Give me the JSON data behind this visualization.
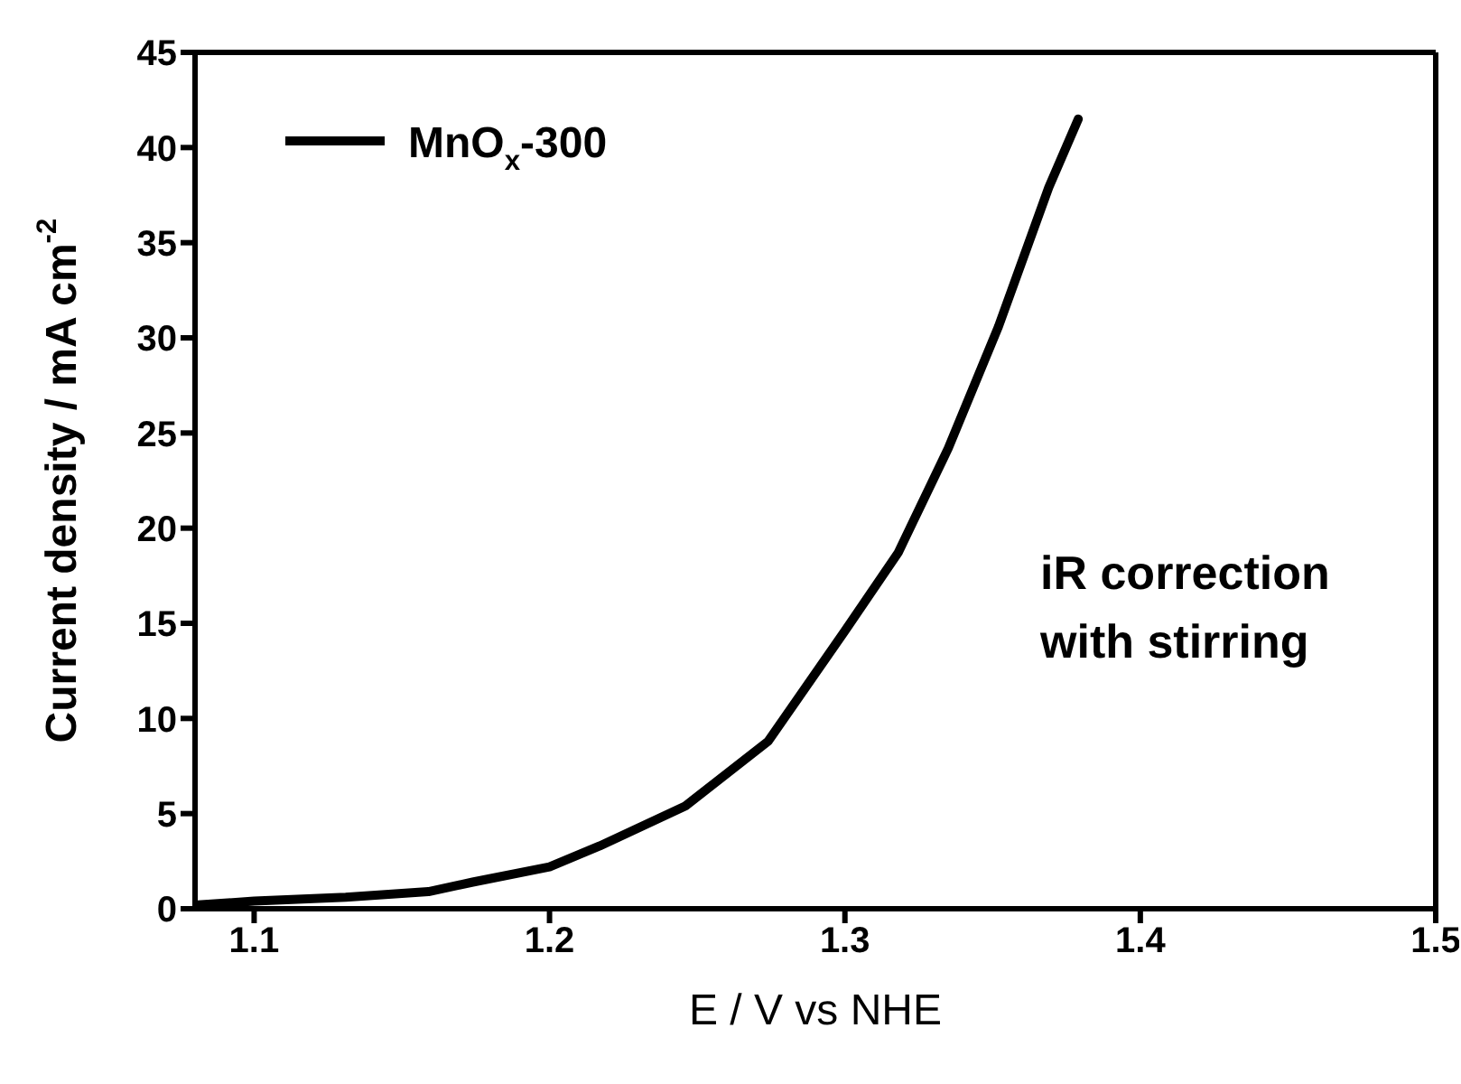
{
  "chart_data": {
    "type": "line",
    "xlabel": "E / V vs NHE",
    "ylabel": "Current density / mA cm$^{-2}$",
    "annotations": [
      "iR correction with stirring"
    ],
    "xlim": [
      1.08,
      1.5
    ],
    "xticks": [
      1.1,
      1.2,
      1.3,
      1.4,
      1.5
    ],
    "ylim": [
      0,
      45
    ],
    "yticks": [
      0,
      5,
      10,
      15,
      20,
      25,
      30,
      35,
      40,
      45
    ],
    "grid": false,
    "legend": "top left",
    "marker": "none",
    "line_style": "solid",
    "x": [
      1.081,
      1.1,
      1.131,
      1.159,
      1.174,
      1.2,
      1.217,
      1.246,
      1.274,
      1.3,
      1.318,
      1.335,
      1.352,
      1.369,
      1.379
    ],
    "series": [
      {
        "name": "MnO$_{x}$-300",
        "color": "#000000",
        "values": [
          0.2,
          0.4,
          0.6,
          0.9,
          1.4,
          2.2,
          3.3,
          5.4,
          8.8,
          14.6,
          18.7,
          24.2,
          30.6,
          37.9,
          41.5
        ]
      }
    ]
  }
}
